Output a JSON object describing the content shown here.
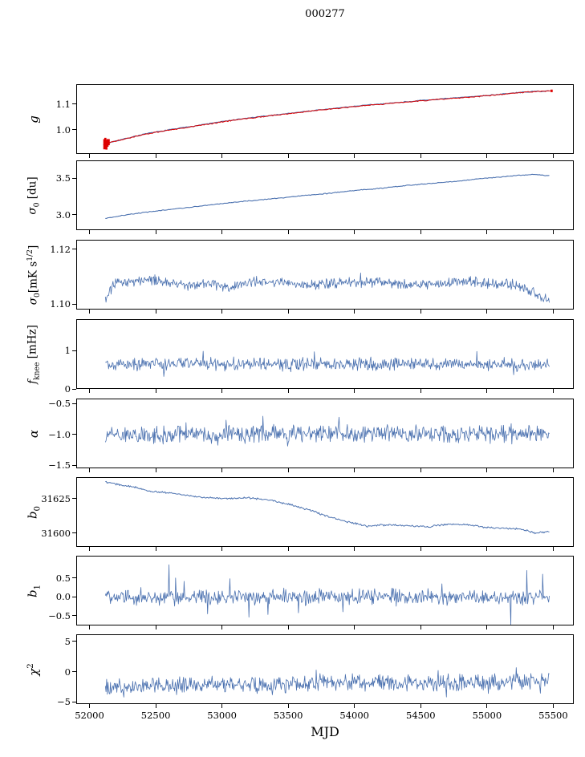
{
  "title": "000277",
  "xlabel": "MJD",
  "xlim": [
    51900,
    55655
  ],
  "x_ticks": [
    {
      "v": 52000,
      "label": "52000"
    },
    {
      "v": 52500,
      "label": "52500"
    },
    {
      "v": 53000,
      "label": "53000"
    },
    {
      "v": 53500,
      "label": "53500"
    },
    {
      "v": 54000,
      "label": "54000"
    },
    {
      "v": 54500,
      "label": "54500"
    },
    {
      "v": 55000,
      "label": "55000"
    },
    {
      "v": 55500,
      "label": "55500"
    }
  ],
  "colors": {
    "line": "#4c72b0",
    "overlay": "#dd0000",
    "axis": "#000000"
  },
  "chart_data": [
    {
      "name": "g",
      "type": "line",
      "ylabel_parts": [
        {
          "t": "g",
          "s": "i"
        }
      ],
      "ylim": [
        0.906,
        1.178
      ],
      "yticks": [
        {
          "v": 1.0,
          "label": "1.0"
        },
        {
          "v": 1.1,
          "label": "1.1"
        }
      ],
      "series": [
        {
          "name": "gain-blue",
          "color": "#4c72b0",
          "width": 1.2,
          "seed": 7,
          "n": 340,
          "noise": 0.0012,
          "control": [
            [
              52105,
              0.943
            ],
            [
              52160,
              0.952
            ],
            [
              52250,
              0.963
            ],
            [
              52400,
              0.982
            ],
            [
              52600,
              1.0
            ],
            [
              52800,
              1.016
            ],
            [
              53000,
              1.032
            ],
            [
              53200,
              1.046
            ],
            [
              53400,
              1.058
            ],
            [
              53600,
              1.07
            ],
            [
              53800,
              1.081
            ],
            [
              54000,
              1.092
            ],
            [
              54200,
              1.101
            ],
            [
              54400,
              1.11
            ],
            [
              54600,
              1.118
            ],
            [
              54800,
              1.126
            ],
            [
              55000,
              1.134
            ],
            [
              55150,
              1.141
            ],
            [
              55300,
              1.148
            ],
            [
              55470,
              1.152
            ]
          ]
        },
        {
          "name": "gain-red",
          "color": "#dd0000",
          "width": 1.0,
          "seed": 8,
          "n": 340,
          "noise": 0.0015,
          "control": [
            [
              52110,
              0.944
            ],
            [
              52160,
              0.953
            ],
            [
              52250,
              0.962
            ],
            [
              52400,
              0.981
            ],
            [
              52600,
              0.999
            ],
            [
              52800,
              1.015
            ],
            [
              53000,
              1.031
            ],
            [
              53200,
              1.045
            ],
            [
              53400,
              1.057
            ],
            [
              53600,
              1.069
            ],
            [
              53800,
              1.08
            ],
            [
              54000,
              1.091
            ],
            [
              54200,
              1.1
            ],
            [
              54400,
              1.109
            ],
            [
              54600,
              1.117
            ],
            [
              54800,
              1.125
            ],
            [
              55000,
              1.133
            ],
            [
              55150,
              1.14
            ],
            [
              55300,
              1.147
            ],
            [
              55480,
              1.152
            ]
          ]
        }
      ],
      "errorbars": {
        "color": "#dd0000",
        "width": 2.6,
        "points": [
          [
            52112,
            0.944,
            0.02
          ],
          [
            52120,
            0.947,
            0.022
          ],
          [
            52128,
            0.941,
            0.018
          ],
          [
            52136,
            0.949,
            0.015
          ],
          [
            52145,
            0.952,
            0.012
          ],
          [
            55488,
            1.152,
            0.005
          ]
        ]
      }
    },
    {
      "name": "sigma0-du",
      "type": "line",
      "ylabel_parts": [
        {
          "t": "σ",
          "s": "i"
        },
        {
          "t": "0",
          "s": "sub"
        },
        {
          "t": " [du]",
          "s": "n"
        }
      ],
      "ylim": [
        2.79,
        3.74
      ],
      "yticks": [
        {
          "v": 3.0,
          "label": "3.0"
        },
        {
          "v": 3.5,
          "label": "3.5"
        }
      ],
      "series": [
        {
          "name": "sigma0-du-line",
          "color": "#4c72b0",
          "width": 1.1,
          "seed": 21,
          "n": 360,
          "noise": 0.004,
          "control": [
            [
              52120,
              2.95
            ],
            [
              52250,
              2.99
            ],
            [
              52400,
              3.03
            ],
            [
              52600,
              3.07
            ],
            [
              52800,
              3.11
            ],
            [
              53000,
              3.15
            ],
            [
              53200,
              3.19
            ],
            [
              53400,
              3.22
            ],
            [
              53600,
              3.26
            ],
            [
              53800,
              3.29
            ],
            [
              54000,
              3.33
            ],
            [
              54200,
              3.36
            ],
            [
              54400,
              3.4
            ],
            [
              54600,
              3.43
            ],
            [
              54800,
              3.46
            ],
            [
              55000,
              3.5
            ],
            [
              55200,
              3.53
            ],
            [
              55350,
              3.55
            ],
            [
              55470,
              3.53
            ]
          ]
        }
      ]
    },
    {
      "name": "sigma0-mks",
      "type": "line",
      "ylabel_parts": [
        {
          "t": "σ",
          "s": "i"
        },
        {
          "t": "0",
          "s": "sub"
        },
        {
          "t": "[mK s",
          "s": "n"
        },
        {
          "t": "1/2",
          "s": "sup"
        },
        {
          "t": "]",
          "s": "n"
        }
      ],
      "ylim": [
        1.098,
        1.1235
      ],
      "yticks": [
        {
          "v": 1.1,
          "label": "1.10"
        },
        {
          "v": 1.12,
          "label": "1.12"
        }
      ],
      "series": [
        {
          "name": "sigma0-mks-line",
          "color": "#4c72b0",
          "width": 0.8,
          "seed": 31,
          "n": 700,
          "noise": 0.0013,
          "spike_prob": 0.03,
          "spike_scale": 1.8,
          "control": [
            [
              52120,
              1.1015
            ],
            [
              52180,
              1.107
            ],
            [
              52300,
              1.1085
            ],
            [
              52450,
              1.1092
            ],
            [
              52600,
              1.108
            ],
            [
              52750,
              1.107
            ],
            [
              52900,
              1.1078
            ],
            [
              53050,
              1.106
            ],
            [
              53200,
              1.1078
            ],
            [
              53350,
              1.108
            ],
            [
              53500,
              1.1075
            ],
            [
              53700,
              1.107
            ],
            [
              53900,
              1.1078
            ],
            [
              54100,
              1.108
            ],
            [
              54300,
              1.1075
            ],
            [
              54500,
              1.107
            ],
            [
              54700,
              1.1078
            ],
            [
              54900,
              1.108
            ],
            [
              55050,
              1.1075
            ],
            [
              55200,
              1.1068
            ],
            [
              55320,
              1.105
            ],
            [
              55470,
              1.102
            ]
          ]
        }
      ]
    },
    {
      "name": "fknee",
      "type": "line",
      "ylabel_parts": [
        {
          "t": "f",
          "s": "i"
        },
        {
          "t": "knee",
          "s": "sub"
        },
        {
          "t": " [mHz]",
          "s": "n"
        }
      ],
      "ylim": [
        0,
        1.82
      ],
      "yticks": [
        {
          "v": 0,
          "label": "0"
        },
        {
          "v": 1,
          "label": "1"
        }
      ],
      "series": [
        {
          "name": "fknee-line",
          "color": "#4c72b0",
          "width": 0.8,
          "seed": 41,
          "n": 700,
          "noise": 0.11,
          "spike_prob": 0.04,
          "spike_scale": 2.4,
          "control": [
            [
              52120,
              0.62
            ],
            [
              52250,
              0.66
            ],
            [
              53500,
              0.64
            ],
            [
              54500,
              0.66
            ],
            [
              55470,
              0.63
            ]
          ]
        }
      ]
    },
    {
      "name": "alpha",
      "type": "line",
      "ylabel_parts": [
        {
          "t": "α",
          "s": "i"
        }
      ],
      "ylim": [
        -1.55,
        -0.42
      ],
      "yticks": [
        {
          "v": -1.5,
          "label": "−1.5"
        },
        {
          "v": -1.0,
          "label": "−1.0"
        },
        {
          "v": -0.5,
          "label": "−0.5"
        }
      ],
      "series": [
        {
          "name": "alpha-line",
          "color": "#4c72b0",
          "width": 0.8,
          "seed": 51,
          "n": 700,
          "noise": 0.09,
          "spike_prob": 0.05,
          "spike_scale": 2.2,
          "control": [
            [
              52120,
              -1.0
            ],
            [
              53000,
              -1.0
            ],
            [
              54000,
              -0.99
            ],
            [
              55470,
              -1.0
            ]
          ]
        }
      ]
    },
    {
      "name": "b0",
      "type": "line",
      "ylabel_parts": [
        {
          "t": "b",
          "s": "i"
        },
        {
          "t": "0",
          "s": "sub"
        }
      ],
      "ylim": [
        31590,
        31640.5
      ],
      "yticks": [
        {
          "v": 31600,
          "label": "31600"
        },
        {
          "v": 31625,
          "label": "31625"
        }
      ],
      "series": [
        {
          "name": "b0-line",
          "color": "#4c72b0",
          "width": 1.0,
          "seed": 61,
          "n": 500,
          "noise": 0.45,
          "control": [
            [
              52120,
              31637
            ],
            [
              52250,
              31634.5
            ],
            [
              52350,
              31633
            ],
            [
              52450,
              31630.5
            ],
            [
              52600,
              31629
            ],
            [
              52750,
              31627
            ],
            [
              52900,
              31625.5
            ],
            [
              53050,
              31625
            ],
            [
              53200,
              31625.5
            ],
            [
              53350,
              31624
            ],
            [
              53500,
              31621
            ],
            [
              53650,
              31617
            ],
            [
              53800,
              31612
            ],
            [
              53950,
              31608
            ],
            [
              54100,
              31605
            ],
            [
              54250,
              31606
            ],
            [
              54400,
              31605.5
            ],
            [
              54550,
              31604.5
            ],
            [
              54700,
              31606.5
            ],
            [
              54850,
              31606
            ],
            [
              55000,
              31604
            ],
            [
              55150,
              31603.5
            ],
            [
              55250,
              31603
            ],
            [
              55370,
              31600
            ],
            [
              55470,
              31601
            ]
          ]
        }
      ]
    },
    {
      "name": "b1",
      "type": "line",
      "ylabel_parts": [
        {
          "t": "b",
          "s": "i"
        },
        {
          "t": "1",
          "s": "sub"
        }
      ],
      "ylim": [
        -0.76,
        1.09
      ],
      "yticks": [
        {
          "v": -0.5,
          "label": "−0.5"
        },
        {
          "v": 0.0,
          "label": "0.0"
        },
        {
          "v": 0.5,
          "label": "0.5"
        }
      ],
      "series": [
        {
          "name": "b1-line",
          "color": "#4c72b0",
          "width": 0.8,
          "seed": 71,
          "n": 700,
          "noise": 0.13,
          "spike_prob": 0.04,
          "spike_scale": 2.6,
          "control": [
            [
              52120,
              0.05
            ],
            [
              52400,
              -0.05
            ],
            [
              53000,
              0.0
            ],
            [
              54000,
              0.02
            ],
            [
              55000,
              -0.02
            ],
            [
              55470,
              0.0
            ]
          ],
          "spikes": [
            [
              52600,
              0.85
            ],
            [
              52650,
              0.5
            ],
            [
              53060,
              0.48
            ],
            [
              55180,
              -0.74
            ],
            [
              55300,
              0.7
            ],
            [
              55420,
              0.6
            ]
          ]
        }
      ]
    },
    {
      "name": "chi2",
      "type": "line",
      "ylabel_parts": [
        {
          "t": "χ",
          "s": "i"
        },
        {
          "t": "2",
          "s": "sup"
        }
      ],
      "ylim": [
        -5.35,
        6.15
      ],
      "yticks": [
        {
          "v": -5,
          "label": "−5"
        },
        {
          "v": 0,
          "label": "0"
        },
        {
          "v": 5,
          "label": "5"
        }
      ],
      "series": [
        {
          "name": "chi2-line",
          "color": "#4c72b0",
          "width": 0.8,
          "seed": 81,
          "n": 700,
          "noise": 0.9,
          "spike_prob": 0.04,
          "spike_scale": 1.8,
          "control": [
            [
              52120,
              -2.6
            ],
            [
              52400,
              -2.4
            ],
            [
              53000,
              -2.2
            ],
            [
              54000,
              -1.8
            ],
            [
              55000,
              -1.9
            ],
            [
              55470,
              -1.5
            ]
          ]
        }
      ]
    }
  ]
}
